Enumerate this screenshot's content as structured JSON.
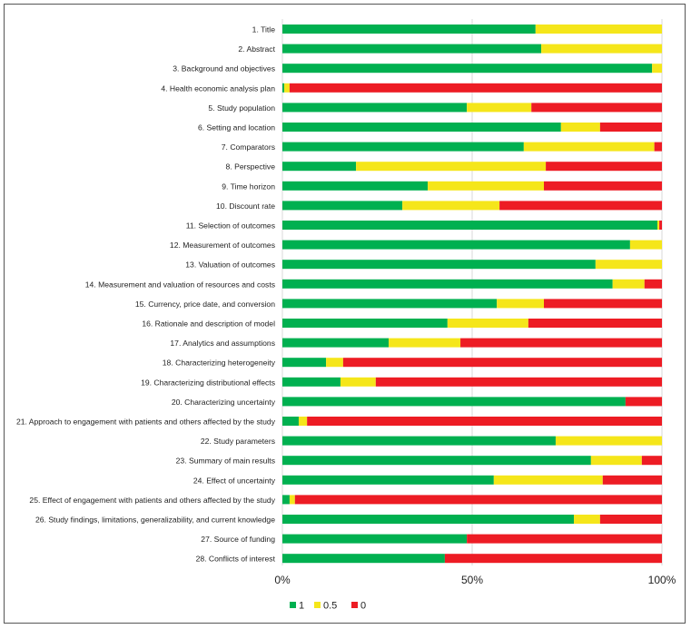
{
  "chart_data": {
    "type": "bar",
    "orientation": "horizontal",
    "stacked": "percent",
    "categories": [
      "1. Title",
      "2. Abstract",
      "3. Background and objectives",
      "4. Health economic analysis plan",
      "5. Study population",
      "6. Setting and location",
      "7. Comparators",
      "8. Perspective",
      "9. Time horizon",
      "10. Discount rate",
      "11. Selection of outcomes",
      "12. Measurement of outcomes",
      "13. Valuation of outcomes",
      "14. Measurement and valuation of resources and costs",
      "15. Currency, price date, and conversion",
      "16. Rationale and description of model",
      "17. Analytics and assumptions",
      "18. Characterizing heterogeneity",
      "19. Characterizing distributional effects",
      "20. Characterizing uncertainty",
      "21. Approach to engagement with patients and others affected by the study",
      "22. Study parameters",
      "23. Summary of main results",
      "24. Effect of uncertainty",
      "25. Effect of engagement with patients and others affected by the study",
      "26. Study findings, limitations, generalizability, and current knowledge",
      "27. Source of funding",
      "28. Conflicts of interest"
    ],
    "series": [
      {
        "name": "1",
        "color": "#00b050",
        "values": [
          66.7,
          68.2,
          97.4,
          0.5,
          48.6,
          73.4,
          63.6,
          19.4,
          38.3,
          31.6,
          98.8,
          91.6,
          82.5,
          87.0,
          56.5,
          43.5,
          28.0,
          11.5,
          15.3,
          90.4,
          4.3,
          72.0,
          81.3,
          55.7,
          1.9,
          76.8,
          48.6,
          42.8
        ]
      },
      {
        "name": "0.5",
        "color": "#f5e61a",
        "values": [
          33.3,
          31.8,
          2.6,
          1.4,
          17.0,
          10.3,
          34.4,
          50.0,
          30.6,
          25.6,
          0.5,
          8.4,
          17.5,
          8.4,
          12.4,
          21.3,
          18.9,
          4.5,
          9.3,
          0,
          2.2,
          28.0,
          13.4,
          28.7,
          1.4,
          6.9,
          0,
          0
        ]
      },
      {
        "name": "0",
        "color": "#ed1c24",
        "values": [
          0,
          0,
          0,
          98.1,
          34.4,
          16.3,
          2.0,
          30.6,
          31.1,
          42.8,
          0.7,
          0,
          0,
          4.6,
          31.1,
          35.2,
          53.1,
          84.0,
          75.4,
          9.6,
          93.5,
          0,
          5.3,
          15.6,
          96.7,
          16.3,
          51.4,
          57.2
        ]
      }
    ],
    "xlim": [
      0,
      100
    ],
    "xticks": [
      "0%",
      "50%",
      "100%"
    ],
    "grid": true,
    "legend": "bottom"
  }
}
